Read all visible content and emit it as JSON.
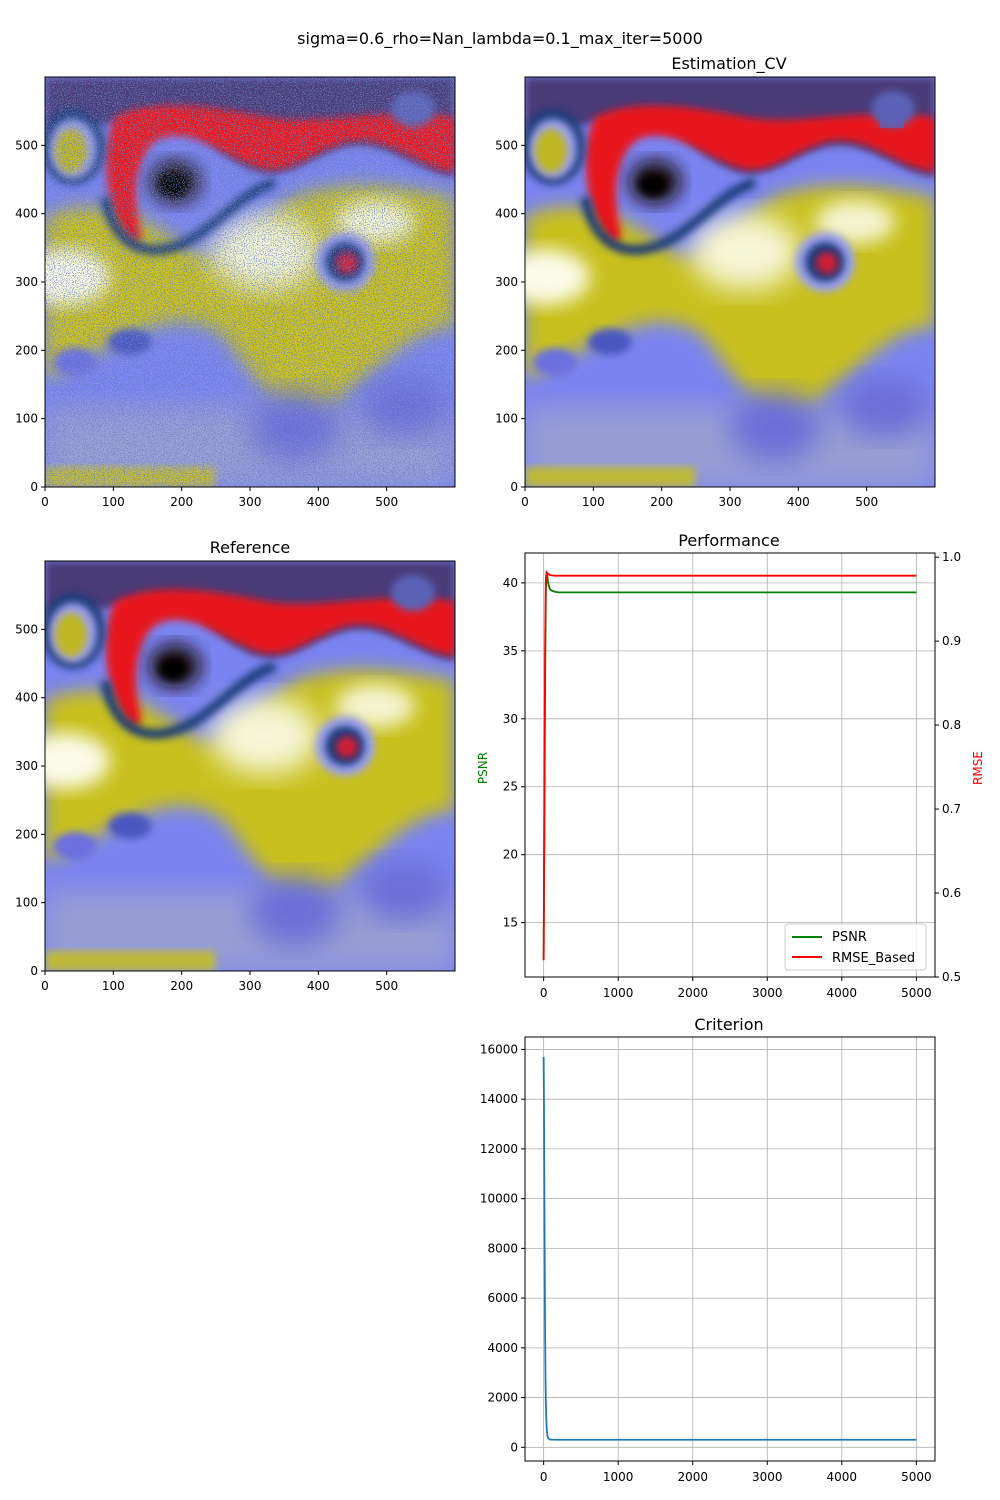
{
  "figure": {
    "suptitle": "sigma=0.6_rho=Nan_lambda=0.1_max_iter=5000"
  },
  "colors": {
    "psnr_line": "#008000",
    "rmse_line": "#ff0000",
    "criterion_line": "#1f77b4",
    "grid": "#b0b0b0",
    "map_red": "#e8141e",
    "map_yellow": "#c8c01e",
    "map_white": "#fbfbe8",
    "map_blue": "#7a84f0",
    "map_navy": "#1e3a78",
    "map_black": "#000000",
    "map_gray": "#9aa0a8"
  },
  "chart_data": [
    {
      "id": "observed",
      "type": "heatmap",
      "title": "",
      "xlim": [
        0,
        600
      ],
      "ylim": [
        0,
        600
      ],
      "xticks": [
        0,
        100,
        200,
        300,
        400,
        500
      ],
      "yticks": [
        0,
        100,
        200,
        300,
        400,
        500
      ],
      "noisy": true
    },
    {
      "id": "estimation",
      "type": "heatmap",
      "title": "Estimation_CV",
      "xlim": [
        0,
        600
      ],
      "ylim": [
        0,
        600
      ],
      "xticks": [
        0,
        100,
        200,
        300,
        400,
        500
      ],
      "yticks": [
        0,
        100,
        200,
        300,
        400,
        500
      ],
      "noisy": false
    },
    {
      "id": "reference",
      "type": "heatmap",
      "title": "Reference",
      "xlim": [
        0,
        600
      ],
      "ylim": [
        0,
        600
      ],
      "xticks": [
        0,
        100,
        200,
        300,
        400,
        500
      ],
      "yticks": [
        0,
        100,
        200,
        300,
        400,
        500
      ],
      "noisy": false
    },
    {
      "id": "performance",
      "type": "line",
      "title": "Performance",
      "ylabel": "PSNR",
      "y2label": "RMSE",
      "xlim": [
        -250,
        5250
      ],
      "ylim": [
        11,
        42.2
      ],
      "y2lim": [
        0.5,
        1.005
      ],
      "xticks": [
        0,
        1000,
        2000,
        3000,
        4000,
        5000
      ],
      "yticks": [
        15,
        20,
        25,
        30,
        35,
        40
      ],
      "y2ticks": [
        0.5,
        0.6,
        0.7,
        0.8,
        0.9,
        1.0
      ],
      "y2ticklabels": [
        "0.5",
        "0.6",
        "0.7",
        "0.8",
        "0.9",
        "1.0"
      ],
      "grid": true,
      "legend": "lower-right",
      "series": [
        {
          "name": "PSNR",
          "axis": "left",
          "x": [
            0,
            10,
            20,
            30,
            40,
            50,
            60,
            80,
            100,
            150,
            200,
            300,
            500,
            1000,
            2000,
            3000,
            4000,
            5000
          ],
          "y": [
            12.3,
            22,
            33,
            39.5,
            40.8,
            40.5,
            40.0,
            39.6,
            39.45,
            39.35,
            39.3,
            39.3,
            39.3,
            39.3,
            39.3,
            39.3,
            39.3,
            39.3
          ]
        },
        {
          "name": "RMSE_Based",
          "axis": "right",
          "x": [
            0,
            10,
            20,
            30,
            40,
            50,
            60,
            80,
            100,
            150,
            200,
            500,
            1000,
            2000,
            3000,
            4000,
            5000
          ],
          "y": [
            0.52,
            0.72,
            0.9,
            0.975,
            0.982,
            0.981,
            0.98,
            0.979,
            0.9785,
            0.978,
            0.978,
            0.978,
            0.978,
            0.978,
            0.978,
            0.978,
            0.978
          ]
        }
      ]
    },
    {
      "id": "criterion",
      "type": "line",
      "title": "Criterion",
      "xlim": [
        -250,
        5250
      ],
      "ylim": [
        -550,
        16500
      ],
      "xticks": [
        0,
        1000,
        2000,
        3000,
        4000,
        5000
      ],
      "yticks": [
        0,
        2000,
        4000,
        6000,
        8000,
        10000,
        12000,
        14000,
        16000
      ],
      "grid": true,
      "series": [
        {
          "x": [
            0,
            5,
            10,
            15,
            20,
            25,
            30,
            40,
            50,
            60,
            80,
            100,
            200,
            500,
            1000,
            2000,
            3000,
            4000,
            5000
          ],
          "y": [
            15700,
            13500,
            10000,
            7000,
            4500,
            2800,
            1700,
            800,
            480,
            370,
            320,
            310,
            305,
            305,
            305,
            305,
            305,
            305,
            305
          ]
        }
      ]
    }
  ]
}
